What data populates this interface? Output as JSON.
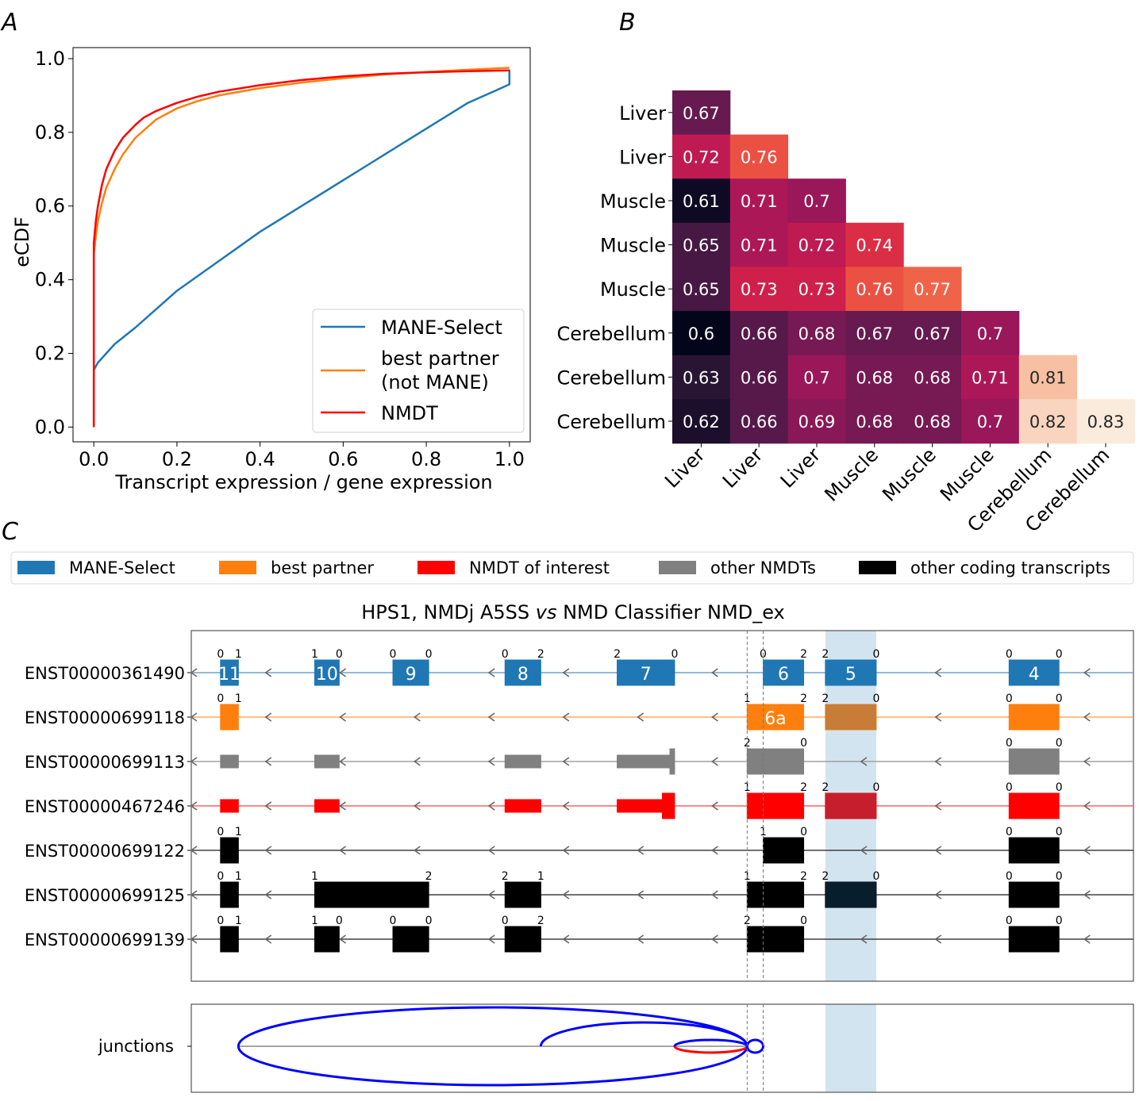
{
  "panels": {
    "a_label": "A",
    "b_label": "B",
    "c_label": "C"
  },
  "chart_data": [
    {
      "id": "A",
      "type": "line",
      "title": "",
      "xlabel": "Transcript expression / gene expression",
      "ylabel": "eCDF",
      "xlim": [
        -0.05,
        1.05
      ],
      "ylim": [
        -0.04,
        1.03
      ],
      "xticks": [
        0.0,
        0.2,
        0.4,
        0.6,
        0.8,
        1.0
      ],
      "xtick_labels": [
        "0.0",
        "0.2",
        "0.4",
        "0.6",
        "0.8",
        "1.0"
      ],
      "yticks": [
        0.0,
        0.2,
        0.4,
        0.6,
        0.8,
        1.0
      ],
      "ytick_labels": [
        "0.0",
        "0.2",
        "0.4",
        "0.6",
        "0.8",
        "1.0"
      ],
      "grid": false,
      "legend_position": "bottom-right",
      "series": [
        {
          "name": "MANE-Select",
          "color": "#1f77b4",
          "x": [
            0.0,
            0.0,
            0.01,
            0.03,
            0.05,
            0.1,
            0.15,
            0.2,
            0.25,
            0.3,
            0.35,
            0.4,
            0.45,
            0.5,
            0.55,
            0.6,
            0.65,
            0.7,
            0.75,
            0.8,
            0.85,
            0.9,
            0.95,
            1.0,
            1.0
          ],
          "y": [
            0.0,
            0.155,
            0.175,
            0.2,
            0.225,
            0.27,
            0.32,
            0.37,
            0.41,
            0.45,
            0.49,
            0.53,
            0.565,
            0.6,
            0.635,
            0.67,
            0.705,
            0.74,
            0.775,
            0.81,
            0.845,
            0.88,
            0.905,
            0.93,
            0.97
          ]
        },
        {
          "name": "best partner (not MANE)",
          "label_lines": [
            "best partner",
            "(not MANE)"
          ],
          "color": "#ff7f0e",
          "x": [
            0.0,
            0.0,
            0.005,
            0.01,
            0.02,
            0.03,
            0.05,
            0.07,
            0.1,
            0.15,
            0.2,
            0.25,
            0.3,
            0.4,
            0.5,
            0.6,
            0.7,
            0.8,
            0.9,
            1.0
          ],
          "y": [
            0.0,
            0.47,
            0.52,
            0.56,
            0.61,
            0.65,
            0.7,
            0.74,
            0.785,
            0.835,
            0.865,
            0.885,
            0.9,
            0.92,
            0.935,
            0.947,
            0.957,
            0.964,
            0.97,
            0.975
          ]
        },
        {
          "name": "NMDT",
          "color": "#ff0000",
          "x": [
            0.0,
            0.0,
            0.005,
            0.01,
            0.02,
            0.03,
            0.05,
            0.07,
            0.1,
            0.12,
            0.15,
            0.2,
            0.25,
            0.3,
            0.4,
            0.5,
            0.6,
            0.7,
            0.8,
            0.9,
            1.0
          ],
          "y": [
            0.0,
            0.5,
            0.56,
            0.6,
            0.66,
            0.7,
            0.75,
            0.785,
            0.82,
            0.84,
            0.858,
            0.88,
            0.897,
            0.91,
            0.928,
            0.942,
            0.952,
            0.959,
            0.963,
            0.966,
            0.968
          ]
        }
      ]
    },
    {
      "id": "B",
      "type": "heatmap",
      "title": "",
      "row_labels": [
        "Liver",
        "Liver",
        "Muscle",
        "Muscle",
        "Muscle",
        "Cerebellum",
        "Cerebellum",
        "Cerebellum"
      ],
      "col_labels": [
        "Liver",
        "Liver",
        "Liver",
        "Muscle",
        "Muscle",
        "Muscle",
        "Cerebellum",
        "Cerebellum"
      ],
      "colormap": "rocket",
      "vmin": 0.6,
      "vmax": 0.83,
      "values": [
        [
          0.67
        ],
        [
          0.72,
          0.76
        ],
        [
          0.61,
          0.71,
          0.7
        ],
        [
          0.65,
          0.71,
          0.72,
          0.74
        ],
        [
          0.65,
          0.73,
          0.73,
          0.76,
          0.77
        ],
        [
          0.6,
          0.66,
          0.68,
          0.67,
          0.67,
          0.7
        ],
        [
          0.63,
          0.66,
          0.7,
          0.68,
          0.68,
          0.71,
          0.81
        ],
        [
          0.62,
          0.66,
          0.69,
          0.68,
          0.68,
          0.7,
          0.82,
          0.83
        ]
      ],
      "cell_labels": [
        [
          "0.67"
        ],
        [
          "0.72",
          "0.76"
        ],
        [
          "0.61",
          "0.71",
          "0.7"
        ],
        [
          "0.65",
          "0.71",
          "0.72",
          "0.74"
        ],
        [
          "0.65",
          "0.73",
          "0.73",
          "0.76",
          "0.77"
        ],
        [
          "0.6",
          "0.66",
          "0.68",
          "0.67",
          "0.67",
          "0.7"
        ],
        [
          "0.63",
          "0.66",
          "0.7",
          "0.68",
          "0.68",
          "0.71",
          "0.81"
        ],
        [
          "0.62",
          "0.66",
          "0.69",
          "0.68",
          "0.68",
          "0.7",
          "0.82",
          "0.83"
        ]
      ]
    },
    {
      "id": "C",
      "type": "gene-structure",
      "title_parts": [
        "HPS1, NMDj A5SS ",
        "vs",
        " NMD Classifier NMD_ex"
      ],
      "legend": [
        {
          "label": "MANE-Select",
          "color": "#1f77b4"
        },
        {
          "label": "best partner",
          "color": "#ff7f0e"
        },
        {
          "label": "NMDT of interest",
          "color": "#ff0000"
        },
        {
          "label": "other NMDTs",
          "color": "#808080"
        },
        {
          "label": "other coding transcripts",
          "color": "#000000"
        }
      ],
      "genomic_range": [
        0,
        100
      ],
      "highlight_region": [
        67.3,
        72.7
      ],
      "dashed_markers": [
        59.0,
        60.7
      ],
      "strand": "-",
      "transcripts": [
        {
          "id": "ENST00000361490",
          "color": "#1f77b4",
          "line_color": "#6fa3cc",
          "exons": [
            {
              "s": 3.1,
              "e": 5.0,
              "l": "0",
              "r": "1",
              "label": "11"
            },
            {
              "s": 13.1,
              "e": 15.7,
              "l": "1",
              "r": "0",
              "label": "10"
            },
            {
              "s": 21.4,
              "e": 25.2,
              "l": "0",
              "r": "0",
              "label": "9"
            },
            {
              "s": 33.3,
              "e": 37.1,
              "l": "0",
              "r": "2",
              "label": "8"
            },
            {
              "s": 45.2,
              "e": 51.3,
              "l": "2",
              "r": "0",
              "label": "7"
            },
            {
              "s": 60.7,
              "e": 65.0,
              "l": "0",
              "r": "2",
              "label": "6"
            },
            {
              "s": 67.3,
              "e": 72.7,
              "l": "2",
              "r": "0",
              "label": "5"
            },
            {
              "s": 86.8,
              "e": 92.1,
              "l": "0",
              "r": "0",
              "label": "4"
            }
          ]
        },
        {
          "id": "ENST00000699118",
          "color": "#ff7f0e",
          "line_color": "#ffa85a",
          "exons": [
            {
              "s": 3.1,
              "e": 5.0,
              "l": "0",
              "r": "1",
              "label": ""
            },
            {
              "s": 59.0,
              "e": 65.0,
              "l": "1",
              "r": "2",
              "label": "6a"
            },
            {
              "s": 67.3,
              "e": 72.7,
              "l": "2",
              "r": "0",
              "label": ""
            },
            {
              "s": 86.8,
              "e": 92.1,
              "l": "0",
              "r": "0",
              "label": ""
            }
          ]
        },
        {
          "id": "ENST00000699113",
          "color": "#808080",
          "line_color": "#a0a0a0",
          "exons": [
            {
              "s": 3.1,
              "e": 5.0,
              "l": "",
              "r": "",
              "label": "",
              "thin": true
            },
            {
              "s": 13.1,
              "e": 15.7,
              "l": "",
              "r": "",
              "label": "",
              "thin": true
            },
            {
              "s": 33.3,
              "e": 37.1,
              "l": "",
              "r": "",
              "label": "",
              "thin": true
            },
            {
              "s": 45.2,
              "e": 50.8,
              "l": "",
              "r": "",
              "label": "",
              "thin": true
            },
            {
              "s": 50.8,
              "e": 51.3,
              "l": "",
              "r": "",
              "label": ""
            },
            {
              "s": 59.0,
              "e": 65.0,
              "l": "2",
              "r": "0",
              "label": ""
            },
            {
              "s": 86.8,
              "e": 92.1,
              "l": "0",
              "r": "0",
              "label": ""
            }
          ]
        },
        {
          "id": "ENST00000467246",
          "color": "#ff0000",
          "line_color": "#ff6060",
          "exons": [
            {
              "s": 3.1,
              "e": 5.0,
              "l": "",
              "r": "",
              "label": "",
              "thin": true
            },
            {
              "s": 13.1,
              "e": 15.7,
              "l": "",
              "r": "",
              "label": "",
              "thin": true
            },
            {
              "s": 33.3,
              "e": 37.1,
              "l": "",
              "r": "",
              "label": "",
              "thin": true
            },
            {
              "s": 45.2,
              "e": 50.0,
              "l": "",
              "r": "",
              "label": "",
              "thin": true
            },
            {
              "s": 50.0,
              "e": 51.3,
              "l": "",
              "r": "",
              "label": ""
            },
            {
              "s": 59.0,
              "e": 65.0,
              "l": "1",
              "r": "2",
              "label": ""
            },
            {
              "s": 67.3,
              "e": 72.7,
              "l": "2",
              "r": "0",
              "label": ""
            },
            {
              "s": 86.8,
              "e": 92.1,
              "l": "0",
              "r": "0",
              "label": ""
            }
          ]
        },
        {
          "id": "ENST00000699122",
          "color": "#000000",
          "line_color": "#404040",
          "exons": [
            {
              "s": 3.1,
              "e": 5.0,
              "l": "0",
              "r": "1",
              "label": ""
            },
            {
              "s": 60.7,
              "e": 65.0,
              "l": "1",
              "r": "0",
              "label": ""
            },
            {
              "s": 86.8,
              "e": 92.1,
              "l": "0",
              "r": "0",
              "label": ""
            }
          ]
        },
        {
          "id": "ENST00000699125",
          "color": "#000000",
          "line_color": "#404040",
          "exons": [
            {
              "s": 3.1,
              "e": 5.0,
              "l": "0",
              "r": "1",
              "label": ""
            },
            {
              "s": 13.1,
              "e": 25.2,
              "l": "1",
              "r": "2",
              "label": ""
            },
            {
              "s": 33.3,
              "e": 37.1,
              "l": "2",
              "r": "1",
              "label": ""
            },
            {
              "s": 59.0,
              "e": 65.0,
              "l": "1",
              "r": "2",
              "label": ""
            },
            {
              "s": 67.3,
              "e": 72.7,
              "l": "2",
              "r": "0",
              "label": ""
            },
            {
              "s": 86.8,
              "e": 92.1,
              "l": "0",
              "r": "0",
              "label": ""
            }
          ]
        },
        {
          "id": "ENST00000699139",
          "color": "#000000",
          "line_color": "#404040",
          "exons": [
            {
              "s": 3.1,
              "e": 5.0,
              "l": "0",
              "r": "1",
              "label": ""
            },
            {
              "s": 13.1,
              "e": 15.7,
              "l": "1",
              "r": "0",
              "label": ""
            },
            {
              "s": 21.4,
              "e": 25.2,
              "l": "0",
              "r": "0",
              "label": ""
            },
            {
              "s": 33.3,
              "e": 37.1,
              "l": "0",
              "r": "2",
              "label": ""
            },
            {
              "s": 59.0,
              "e": 65.0,
              "l": "2",
              "r": "0",
              "label": ""
            },
            {
              "s": 86.8,
              "e": 92.1,
              "l": "0",
              "r": "0",
              "label": ""
            }
          ]
        }
      ],
      "junctions_label": "junctions",
      "junctions": [
        {
          "from": 5.0,
          "to": 59.0,
          "color": "#0000ff",
          "side": "both"
        },
        {
          "from": 37.1,
          "to": 59.0,
          "color": "#0000ff",
          "side": "up"
        },
        {
          "from": 51.3,
          "to": 59.0,
          "color": "#0000ff",
          "side": "up-small"
        },
        {
          "from": 51.3,
          "to": 59.0,
          "color": "#ff0000",
          "side": "down-small"
        },
        {
          "from": 59.0,
          "to": 60.7,
          "color": "#0000ff",
          "side": "tiny"
        }
      ],
      "junction_baseline": [
        5.0,
        59.0
      ]
    }
  ]
}
